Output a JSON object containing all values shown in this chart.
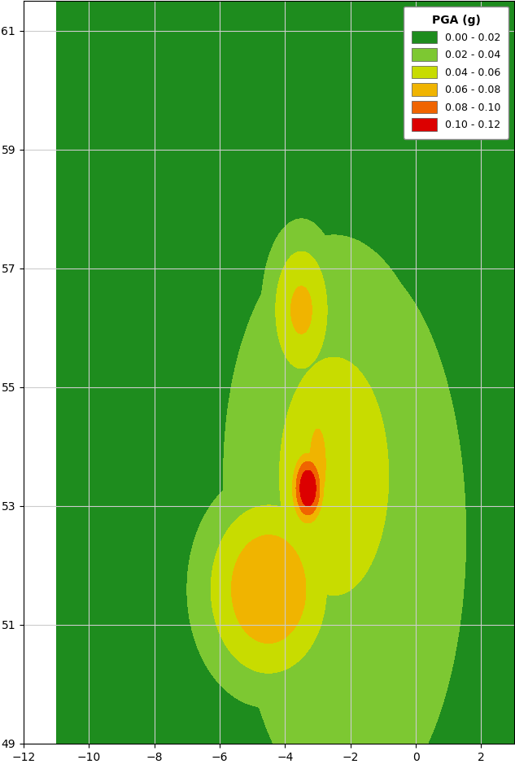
{
  "title": "",
  "legend_title": "PGA (g)",
  "legend_labels": [
    "0.00 - 0.02",
    "0.02 - 0.04",
    "0.04 - 0.06",
    "0.06 - 0.08",
    "0.08 - 0.10",
    "0.10 - 0.12"
  ],
  "legend_colors": [
    "#1e8c1e",
    "#7dc832",
    "#c8dc00",
    "#f0b400",
    "#f06400",
    "#dc0000"
  ],
  "pga_levels": [
    0.0,
    0.02,
    0.04,
    0.06,
    0.08,
    0.1,
    0.12
  ],
  "background_color": "#ffffff",
  "grid_color": "#cccccc",
  "lon_min": -11,
  "lon_max": 3,
  "lat_min": 49,
  "lat_max": 61.5,
  "seismic_hotspots": [
    {
      "lon": -3.5,
      "lat": 56.3,
      "pga_max": 0.065,
      "sigma_lon": 0.8,
      "sigma_lat": 1.0
    },
    {
      "lon": -3.3,
      "lat": 53.3,
      "pga_max": 0.12,
      "sigma_lon": 0.4,
      "sigma_lat": 0.5
    },
    {
      "lon": -4.5,
      "lat": 51.6,
      "pga_max": 0.08,
      "sigma_lon": 1.5,
      "sigma_lat": 1.2
    },
    {
      "lon": -3.0,
      "lat": 53.7,
      "pga_max": 0.065,
      "sigma_lon": 0.6,
      "sigma_lat": 1.5
    },
    {
      "lon": -2.5,
      "lat": 53.5,
      "pga_max": 0.05,
      "sigma_lon": 2.5,
      "sigma_lat": 3.0
    },
    {
      "lon": -2.0,
      "lat": 52.5,
      "pga_max": 0.04,
      "sigma_lon": 3.0,
      "sigma_lat": 4.0
    }
  ]
}
